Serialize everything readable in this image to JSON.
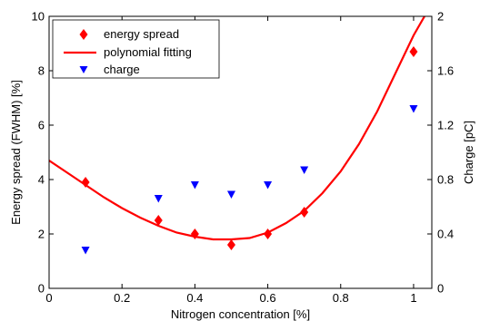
{
  "chart_data": {
    "type": "scatter",
    "x_axis": {
      "label": "Nitrogen concentration [%]",
      "range": [
        0,
        1.05
      ],
      "ticks": [
        0,
        0.2,
        0.4,
        0.6,
        0.8,
        1
      ],
      "tick_labels": [
        "0",
        "0.2",
        "0.4",
        "0.6",
        "0.8",
        "1"
      ]
    },
    "y_axis_left": {
      "label": "Energy spread (FWHM) [%]",
      "range": [
        0,
        10
      ],
      "ticks": [
        0,
        2,
        4,
        6,
        8,
        10
      ],
      "tick_labels": [
        "0",
        "2",
        "4",
        "6",
        "8",
        "10"
      ]
    },
    "y_axis_right": {
      "label": "Charge [pC]",
      "range": [
        0,
        2
      ],
      "ticks": [
        0,
        0.4,
        0.8,
        1.2,
        1.6,
        2
      ],
      "tick_labels": [
        "0",
        "0.4",
        "0.8",
        "1.2",
        "1.6",
        "2"
      ]
    },
    "legend": {
      "placement": "top-left"
    },
    "series": [
      {
        "name": "energy spread",
        "kind": "diamond-markers",
        "axis": "left",
        "color": "#ff0000",
        "x": [
          0.1,
          0.3,
          0.4,
          0.5,
          0.6,
          0.7,
          1.0
        ],
        "y": [
          3.9,
          2.5,
          2.0,
          1.6,
          2.0,
          2.8,
          8.7
        ]
      },
      {
        "name": "polynomial fitting",
        "kind": "line",
        "axis": "left",
        "color": "#ff0000",
        "x": [
          0,
          0.05,
          0.1,
          0.15,
          0.2,
          0.25,
          0.3,
          0.35,
          0.4,
          0.45,
          0.5,
          0.55,
          0.6,
          0.65,
          0.7,
          0.75,
          0.8,
          0.85,
          0.9,
          0.95,
          1.0,
          1.03
        ],
        "y": [
          4.7,
          4.25,
          3.8,
          3.35,
          2.95,
          2.6,
          2.3,
          2.05,
          1.9,
          1.8,
          1.8,
          1.85,
          2.05,
          2.4,
          2.85,
          3.5,
          4.3,
          5.3,
          6.5,
          7.9,
          9.3,
          10.0
        ]
      },
      {
        "name": "charge",
        "kind": "triangle-markers",
        "axis": "right",
        "color": "#0000ff",
        "x": [
          0.1,
          0.3,
          0.4,
          0.5,
          0.6,
          0.7,
          1.0
        ],
        "y": [
          0.28,
          0.66,
          0.76,
          0.69,
          0.76,
          0.87,
          1.32
        ]
      }
    ]
  }
}
